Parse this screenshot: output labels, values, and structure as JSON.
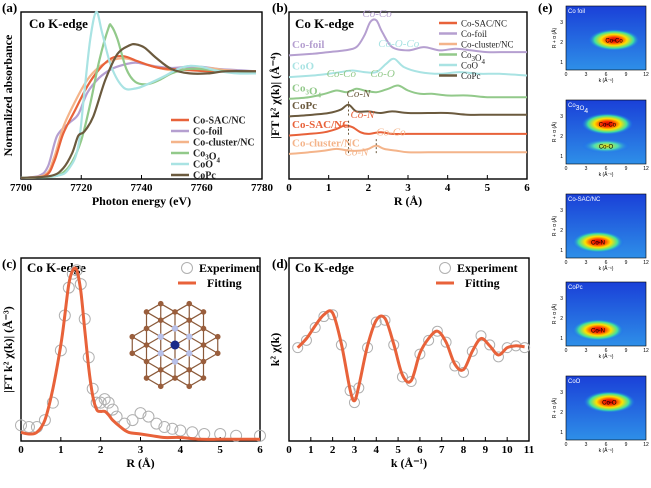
{
  "colors": {
    "CoSAC": "#e8623a",
    "Cofoil": "#b59fd0",
    "Cocluster": "#f4b48a",
    "Co3O4": "#92c98a",
    "CoO": "#a9e3e3",
    "CoPc": "#6b5a3e",
    "fit": "#e8623a",
    "exp": "#b0b0b0"
  },
  "chart_data": [
    {
      "id": "a",
      "type": "line",
      "panel_label": "(a)",
      "title": "Co K-edge",
      "xlabel": "Photon energy (eV)",
      "ylabel": "Normalized absorbance",
      "xlim": [
        7700,
        7780
      ],
      "ylim": [
        0,
        1.55
      ],
      "xticks": [
        7700,
        7720,
        7740,
        7760,
        7780
      ],
      "legend": [
        "Co-SAC/NC",
        "Co-foil",
        "Co-cluster/NC",
        "Co3O4",
        "CoO",
        "CoPc"
      ],
      "series": [
        {
          "name": "Co-foil",
          "x": [
            7700,
            7706,
            7709,
            7712,
            7716,
            7719,
            7722,
            7726,
            7730,
            7734,
            7738,
            7742,
            7746,
            7750,
            7755,
            7760,
            7766,
            7772,
            7778
          ],
          "y": [
            0.01,
            0.03,
            0.12,
            0.4,
            0.52,
            0.6,
            0.8,
            0.94,
            1.02,
            1.06,
            1.08,
            1.06,
            1.04,
            1.03,
            1.04,
            1.04,
            1.02,
            1.01,
            1.0
          ]
        },
        {
          "name": "Co-cluster/NC",
          "x": [
            7700,
            7708,
            7711,
            7714,
            7718,
            7722,
            7726,
            7730,
            7734,
            7738,
            7742,
            7746,
            7750,
            7756,
            7762,
            7768,
            7774,
            7778
          ],
          "y": [
            0.01,
            0.04,
            0.2,
            0.48,
            0.72,
            0.92,
            1.04,
            1.1,
            1.12,
            1.1,
            1.06,
            1.03,
            1.01,
            1.02,
            1.03,
            1.01,
            1.0,
            1.0
          ]
        },
        {
          "name": "Co-SAC/NC",
          "x": [
            7700,
            7708,
            7711,
            7714,
            7718,
            7722,
            7726,
            7730,
            7734,
            7738,
            7742,
            7746,
            7750,
            7756,
            7762,
            7768,
            7774,
            7778
          ],
          "y": [
            0.01,
            0.03,
            0.16,
            0.42,
            0.64,
            0.86,
            1.02,
            1.12,
            1.14,
            1.1,
            1.06,
            1.03,
            1.02,
            1.01,
            1.0,
            1.0,
            1.0,
            1.0
          ]
        },
        {
          "name": "Co3O4",
          "x": [
            7700,
            7710,
            7714,
            7717,
            7720,
            7723,
            7726,
            7729,
            7730,
            7732,
            7735,
            7738,
            7742,
            7746,
            7750,
            7755,
            7760,
            7768,
            7778
          ],
          "y": [
            0.01,
            0.02,
            0.06,
            0.16,
            0.36,
            0.7,
            1.1,
            1.4,
            1.42,
            1.3,
            1.02,
            0.9,
            0.88,
            0.92,
            0.98,
            1.02,
            1.02,
            1.0,
            0.99
          ]
        },
        {
          "name": "CoO",
          "x": [
            7700,
            7712,
            7716,
            7719,
            7721,
            7723,
            7725,
            7727,
            7730,
            7734,
            7738,
            7742,
            7748,
            7752,
            7756,
            7760,
            7766,
            7772,
            7778
          ],
          "y": [
            0.01,
            0.03,
            0.1,
            0.3,
            0.8,
            1.3,
            1.55,
            1.35,
            1.04,
            0.85,
            0.84,
            0.88,
            0.96,
            1.02,
            1.05,
            1.04,
            1.0,
            0.98,
            0.98
          ]
        },
        {
          "name": "CoPc",
          "x": [
            7700,
            7710,
            7714,
            7717,
            7719,
            7721,
            7724,
            7728,
            7732,
            7736,
            7738,
            7741,
            7745,
            7750,
            7756,
            7762,
            7768,
            7778
          ],
          "y": [
            0.01,
            0.03,
            0.1,
            0.24,
            0.4,
            0.44,
            0.58,
            0.92,
            1.16,
            1.24,
            1.25,
            1.22,
            1.12,
            1.02,
            0.98,
            0.98,
            1.0,
            1.0
          ]
        }
      ]
    },
    {
      "id": "b",
      "type": "line",
      "panel_label": "(b)",
      "title": "Co K-edge",
      "xlabel": "R (Å)",
      "ylabel": "|FT k² χ(k)| (Å⁻⁴)",
      "xlim": [
        0,
        6
      ],
      "ylim": [
        0,
        1
      ],
      "xticks": [
        0,
        1,
        2,
        3,
        4,
        5,
        6
      ],
      "legend": [
        "Co-SAC/NC",
        "Co-foil",
        "Co-cluster/NC",
        "Co3O4",
        "CoO",
        "CoPc"
      ],
      "series": [
        {
          "name": "Co-foil",
          "offset": 0.74,
          "x": [
            0,
            0.6,
            1.0,
            1.4,
            1.7,
            1.9,
            2.05,
            2.2,
            2.35,
            2.6,
            3.0,
            3.4,
            3.8,
            4.2,
            4.6,
            5.0,
            5.5,
            6.0
          ],
          "y": [
            0,
            0.01,
            0.02,
            0.03,
            0.05,
            0.12,
            0.2,
            0.21,
            0.14,
            0.05,
            0.03,
            0.05,
            0.03,
            0.04,
            0.03,
            0.02,
            0.02,
            0.02
          ]
        },
        {
          "name": "CoO",
          "offset": 0.61,
          "x": [
            0,
            0.6,
            1.0,
            1.3,
            1.6,
            1.9,
            2.2,
            2.45,
            2.65,
            2.9,
            3.3,
            3.8,
            4.3,
            4.8,
            5.3,
            6.0
          ],
          "y": [
            0,
            0.01,
            0.02,
            0.03,
            0.04,
            0.03,
            0.03,
            0.08,
            0.11,
            0.06,
            0.03,
            0.02,
            0.03,
            0.02,
            0.02,
            0.01
          ]
        },
        {
          "name": "Co3O4",
          "offset": 0.48,
          "x": [
            0,
            0.5,
            0.9,
            1.2,
            1.45,
            1.7,
            1.9,
            2.2,
            2.5,
            2.75,
            3.0,
            3.3,
            3.6,
            4.0,
            4.5,
            5.0,
            5.5,
            6.0
          ],
          "y": [
            0,
            0.01,
            0.03,
            0.05,
            0.04,
            0.06,
            0.05,
            0.04,
            0.06,
            0.08,
            0.05,
            0.03,
            0.03,
            0.02,
            0.02,
            0.01,
            0.01,
            0.01
          ]
        },
        {
          "name": "CoPc",
          "offset": 0.375,
          "x": [
            0,
            0.6,
            1.0,
            1.3,
            1.5,
            1.7,
            2.0,
            2.3,
            2.6,
            3.0,
            3.5,
            4.0,
            4.5,
            5.0,
            5.5,
            6.0
          ],
          "y": [
            0,
            0.01,
            0.02,
            0.04,
            0.07,
            0.03,
            0.03,
            0.02,
            0.03,
            0.02,
            0.02,
            0.02,
            0.01,
            0.01,
            0.01,
            0.01
          ]
        },
        {
          "name": "Co-SAC/NC",
          "offset": 0.26,
          "x": [
            0,
            0.5,
            0.9,
            1.2,
            1.4,
            1.6,
            1.8,
            2.0,
            2.3,
            2.6,
            3.0,
            3.5,
            4.0,
            4.5,
            5.0,
            5.5,
            6.0
          ],
          "y": [
            0,
            0.01,
            0.02,
            0.04,
            0.06,
            0.05,
            0.02,
            0.01,
            0.02,
            0.01,
            0.01,
            0.01,
            0.01,
            0.01,
            0.01,
            0.01,
            0.01
          ]
        },
        {
          "name": "Co-cluster/NC",
          "offset": 0.15,
          "x": [
            0,
            0.5,
            0.9,
            1.2,
            1.5,
            1.8,
            2.0,
            2.2,
            2.4,
            2.7,
            3.0,
            3.5,
            4.0,
            4.5,
            5.0,
            5.5,
            6.0
          ],
          "y": [
            0,
            0.01,
            0.02,
            0.03,
            0.02,
            0.02,
            0.03,
            0.05,
            0.03,
            0.02,
            0.01,
            0.01,
            0.01,
            0.01,
            0.01,
            0.01,
            0.01
          ]
        }
      ],
      "curve_labels": [
        "Co-foil",
        "CoO",
        "Co3O4",
        "CoPc",
        "Co-SAC/NC",
        "Co-cluster/NC"
      ],
      "annotations": [
        "Co-Co",
        "Co-O-Co",
        "Co-Co",
        "Co-O",
        "Co-N",
        "Co-N",
        "Co-N",
        "Co-Co"
      ]
    },
    {
      "id": "c",
      "type": "line",
      "panel_label": "(c)",
      "title": "Co K-edge",
      "xlabel": "R (Å)",
      "ylabel": "|FT k² χ(k)| (Å⁻³)",
      "xlim": [
        0,
        6
      ],
      "ylim": [
        0,
        1.05
      ],
      "xticks": [
        0,
        1,
        2,
        3,
        4,
        5,
        6
      ],
      "legend": [
        "Experiment",
        "Fitting"
      ],
      "series": [
        {
          "name": "Experiment",
          "x": [
            0,
            0.2,
            0.4,
            0.6,
            0.8,
            1.0,
            1.1,
            1.2,
            1.3,
            1.4,
            1.5,
            1.6,
            1.7,
            1.8,
            1.9,
            2.0,
            2.1,
            2.2,
            2.3,
            2.4,
            2.6,
            2.8,
            3.0,
            3.2,
            3.4,
            3.6,
            3.8,
            4.0,
            4.3,
            4.6,
            5.0,
            5.4,
            6.0
          ],
          "y": [
            0.09,
            0.08,
            0.08,
            0.12,
            0.22,
            0.52,
            0.72,
            0.88,
            0.96,
            0.98,
            0.9,
            0.7,
            0.48,
            0.3,
            0.22,
            0.22,
            0.24,
            0.22,
            0.18,
            0.14,
            0.1,
            0.12,
            0.16,
            0.14,
            0.1,
            0.08,
            0.07,
            0.06,
            0.05,
            0.04,
            0.04,
            0.03,
            0.03
          ]
        },
        {
          "name": "Fitting",
          "x": [
            0,
            0.2,
            0.4,
            0.6,
            0.8,
            1.0,
            1.1,
            1.2,
            1.3,
            1.4,
            1.5,
            1.6,
            1.7,
            1.8,
            1.9,
            2.0,
            2.1,
            2.2,
            2.3,
            2.5,
            2.7,
            3.0,
            3.3,
            3.6,
            4.0,
            4.5,
            5.0,
            5.5,
            6.0
          ],
          "y": [
            0.05,
            0.04,
            0.05,
            0.12,
            0.3,
            0.55,
            0.72,
            0.9,
            0.98,
            0.98,
            0.86,
            0.64,
            0.42,
            0.26,
            0.18,
            0.17,
            0.17,
            0.15,
            0.12,
            0.08,
            0.05,
            0.04,
            0.03,
            0.02,
            0.02,
            0.01,
            0.01,
            0.01,
            0.01
          ]
        }
      ]
    },
    {
      "id": "d",
      "type": "line",
      "panel_label": "(d)",
      "title": "Co K-edge",
      "xlabel": "k (Å⁻¹)",
      "ylabel": "k² χ(k)",
      "xlim": [
        0,
        11
      ],
      "ylim": [
        -1,
        1
      ],
      "xticks": [
        0,
        1,
        2,
        3,
        4,
        5,
        6,
        7,
        8,
        9,
        10,
        11
      ],
      "legend": [
        "Experiment",
        "Fitting"
      ],
      "series": [
        {
          "name": "Experiment",
          "x": [
            0.4,
            0.8,
            1.2,
            1.6,
            2.0,
            2.4,
            2.8,
            3.0,
            3.2,
            3.6,
            4.0,
            4.4,
            4.8,
            5.2,
            5.6,
            6.0,
            6.4,
            6.8,
            7.2,
            7.6,
            8.0,
            8.4,
            8.8,
            9.2,
            9.6,
            10.0,
            10.4,
            10.8
          ],
          "y": [
            0.02,
            0.1,
            0.24,
            0.36,
            0.38,
            0.05,
            -0.45,
            -0.58,
            -0.42,
            0.02,
            0.3,
            0.32,
            0.05,
            -0.3,
            -0.35,
            -0.05,
            0.1,
            0.2,
            0.08,
            -0.18,
            -0.25,
            -0.02,
            0.15,
            0.05,
            -0.08,
            0.02,
            0.04,
            0.02
          ]
        },
        {
          "name": "Fitting",
          "x": [
            0.4,
            0.8,
            1.2,
            1.6,
            2.0,
            2.4,
            2.8,
            3.0,
            3.2,
            3.6,
            4.0,
            4.4,
            4.8,
            5.2,
            5.6,
            6.0,
            6.4,
            6.8,
            7.2,
            7.6,
            8.0,
            8.4,
            8.8,
            9.2,
            9.6,
            10.0,
            10.4,
            10.8
          ],
          "y": [
            0.02,
            0.12,
            0.26,
            0.38,
            0.4,
            0.06,
            -0.44,
            -0.56,
            -0.4,
            0.04,
            0.32,
            0.34,
            0.06,
            -0.28,
            -0.34,
            -0.04,
            0.12,
            0.2,
            0.08,
            -0.16,
            -0.22,
            -0.02,
            0.12,
            0.04,
            -0.06,
            0.02,
            0.04,
            0.03
          ]
        }
      ]
    },
    {
      "id": "e",
      "type": "heatmap",
      "panel_label": "(e)",
      "xlabel": "k (Å⁻¹)",
      "ylabel": "R + α (Å)",
      "xticks": [
        0,
        3,
        6,
        9,
        12
      ],
      "yticks": [
        1,
        2,
        3
      ],
      "maps": [
        {
          "name": "Co foil",
          "blob_label": "Co-Co",
          "blob_k": 7.2,
          "blob_r": 2.1
        },
        {
          "name": "Co3O4",
          "blob_label": "Co-Co",
          "blob_k": 6.2,
          "blob_r": 2.6,
          "blob2_label": "Co-O",
          "blob2_k": 6.0,
          "blob2_r": 1.5
        },
        {
          "name": "Co-SAC/NC",
          "blob_label": "Co-N",
          "blob_k": 4.8,
          "blob_r": 1.4
        },
        {
          "name": "CoPc",
          "blob_label": "Co-N",
          "blob_k": 4.8,
          "blob_r": 1.4
        },
        {
          "name": "CoO",
          "blob_label": "Co-O",
          "blob_k": 6.5,
          "blob_r": 2.5
        }
      ]
    }
  ]
}
